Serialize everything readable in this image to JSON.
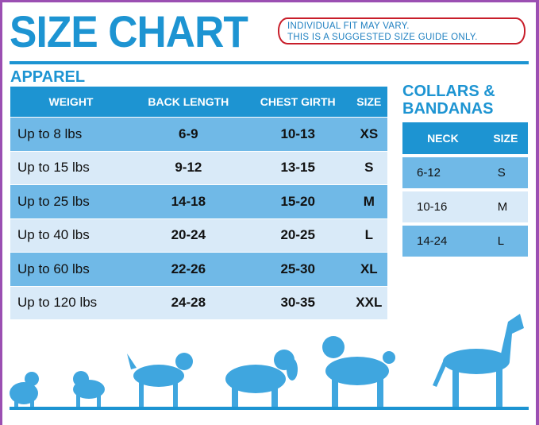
{
  "title": "SIZE CHART",
  "notice": {
    "line1": "INDIVIDUAL FIT MAY VARY.",
    "line2": "THIS IS A SUGGESTED SIZE GUIDE ONLY."
  },
  "apparel": {
    "heading": "APPAREL",
    "headers": [
      "WEIGHT",
      "BACK LENGTH",
      "CHEST GIRTH",
      "SIZE"
    ],
    "rows": [
      [
        "Up to 8 lbs",
        "6-9",
        "10-13",
        "XS"
      ],
      [
        "Up to 15 lbs",
        "9-12",
        "13-15",
        "S"
      ],
      [
        "Up to 25 lbs",
        "14-18",
        "15-20",
        "M"
      ],
      [
        "Up to 40 lbs",
        "20-24",
        "20-25",
        "L"
      ],
      [
        "Up to 60 lbs",
        "22-26",
        "25-30",
        "XL"
      ],
      [
        "Up to 120 lbs",
        "24-28",
        "30-35",
        "XXL"
      ]
    ]
  },
  "collars": {
    "heading_line1": "COLLARS &",
    "heading_line2": "BANDANAS",
    "headers": [
      "NECK",
      "SIZE"
    ],
    "rows": [
      [
        "6-12",
        "S"
      ],
      [
        "10-16",
        "M"
      ],
      [
        "14-24",
        "L"
      ]
    ]
  },
  "colors": {
    "brand": "#1d94d2",
    "row_dark": "#70b9e7",
    "row_light": "#d9eaf8",
    "frame": "#9b4fb2",
    "notice_border": "#c81e2a"
  },
  "illustration": "dog-silhouettes"
}
